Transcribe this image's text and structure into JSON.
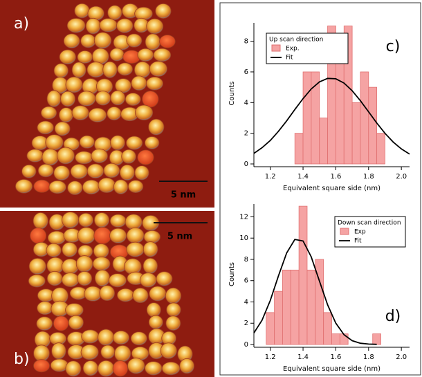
{
  "images": [
    {
      "label": "a)",
      "scale_bar": "5 nm"
    },
    {
      "label": "b)",
      "scale_bar": "5 nm"
    }
  ],
  "chart_data": [
    {
      "type": "histogram",
      "panel_label": "c)",
      "legend_title": "Up scan direction",
      "legend": "upper left",
      "xlabel": "Equivalent square side (nm)",
      "ylabel": "Counts",
      "bins": [
        1.35,
        1.4,
        1.45,
        1.5,
        1.55,
        1.6,
        1.65,
        1.7,
        1.75,
        1.8,
        1.85,
        1.9
      ],
      "series": [
        {
          "name": "Exp.",
          "color": "#f5a3a3",
          "values": [
            2,
            6,
            6,
            3,
            9,
            8,
            9,
            4,
            6,
            5,
            2
          ]
        },
        {
          "name": "Fit",
          "type": "line",
          "color": "#000000",
          "x": [
            1.1,
            1.15,
            1.2,
            1.25,
            1.3,
            1.35,
            1.4,
            1.45,
            1.5,
            1.55,
            1.6,
            1.65,
            1.7,
            1.75,
            1.8,
            1.85,
            1.9,
            1.95,
            2.0,
            2.05
          ],
          "values": [
            0.69,
            1.06,
            1.53,
            2.13,
            2.81,
            3.55,
            4.26,
            4.89,
            5.35,
            5.58,
            5.55,
            5.27,
            4.77,
            4.12,
            3.4,
            2.67,
            2.0,
            1.43,
            0.98,
            0.64
          ]
        }
      ],
      "xlim": [
        1.1,
        2.05
      ],
      "ylim": [
        0,
        9.2
      ],
      "xticks": [
        1.2,
        1.4,
        1.6,
        1.8,
        {
          "value": 2,
          "label": "2.0"
        }
      ],
      "yticks": [
        0,
        2,
        4,
        6,
        8
      ]
    },
    {
      "type": "histogram",
      "panel_label": "d)",
      "legend_title": "Down scan direction",
      "legend": "upper right",
      "xlabel": "Equivalent square side (nm)",
      "ylabel": "Counts",
      "bins": [
        1.175,
        1.225,
        1.275,
        1.325,
        1.375,
        1.425,
        1.475,
        1.525,
        1.575,
        1.625,
        1.675,
        1.725,
        1.775,
        1.825,
        1.875
      ],
      "series": [
        {
          "name": "Exp",
          "color": "#f5a3a3",
          "values": [
            3,
            5,
            7,
            7,
            13,
            7,
            8,
            3,
            1,
            1,
            0,
            0,
            0,
            1
          ]
        },
        {
          "name": "Fit",
          "type": "line",
          "color": "#000000",
          "x": [
            1.1,
            1.15,
            1.2,
            1.25,
            1.3,
            1.35,
            1.4,
            1.45,
            1.5,
            1.55,
            1.6,
            1.65,
            1.7,
            1.75,
            1.8,
            1.85
          ],
          "values": [
            1.08,
            2.29,
            4.14,
            6.45,
            8.61,
            9.88,
            9.73,
            8.23,
            5.97,
            3.72,
            2.0,
            0.92,
            0.36,
            0.12,
            0.04,
            0.01
          ]
        }
      ],
      "xlim": [
        1.1,
        2.05
      ],
      "ylim": [
        0,
        13.2
      ],
      "xticks": [
        1.2,
        1.4,
        1.6,
        1.8,
        {
          "value": 2,
          "label": "2.0"
        }
      ],
      "yticks": [
        0,
        2,
        4,
        6,
        8,
        10,
        12
      ]
    }
  ]
}
